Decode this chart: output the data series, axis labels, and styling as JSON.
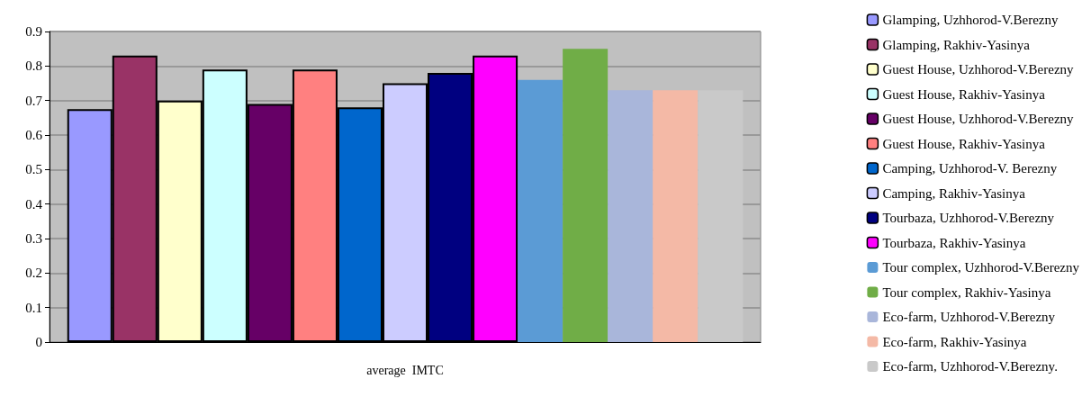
{
  "chart_data": {
    "type": "bar",
    "xlabel": "average  IMTC",
    "categories": [
      null
    ],
    "ylim": [
      0,
      0.9
    ],
    "yticks": [
      0,
      0.1,
      0.2,
      0.3,
      0.4,
      0.5,
      0.6,
      0.7,
      0.8,
      0.9
    ],
    "grid": "y",
    "legend": "right",
    "series": [
      {
        "name": "Glamping, Uzhhorod-V.Berezny",
        "color": "#9999ff",
        "values": [
          0.675
        ]
      },
      {
        "name": "Glamping, Rakhiv-Yasinya",
        "color": "#993366",
        "values": [
          0.83
        ]
      },
      {
        "name": "Guest House, Uzhhorod-V.Berezny",
        "color": "#ffffcc",
        "values": [
          0.7
        ]
      },
      {
        "name": "Guest House, Rakhiv-Yasinya",
        "color": "#ccffff",
        "values": [
          0.79
        ]
      },
      {
        "name": "Guest House, Uzhhorod-V.Berezny",
        "color": "#660066",
        "values": [
          0.69
        ]
      },
      {
        "name": "Guest House, Rakhiv-Yasinya",
        "color": "#ff8080",
        "values": [
          0.79
        ]
      },
      {
        "name": "Camping, Uzhhorod-V. Berezny",
        "color": "#0066cc",
        "values": [
          0.68
        ]
      },
      {
        "name": "Camping, Rakhiv-Yasinya",
        "color": "#ccccff",
        "values": [
          0.75
        ]
      },
      {
        "name": "Tourbaza, Uzhhorod-V.Berezny",
        "color": "#000080",
        "values": [
          0.78
        ]
      },
      {
        "name": "Tourbaza, Rakhiv-Yasinya",
        "color": "#ff00ff",
        "values": [
          0.83
        ]
      },
      {
        "name": "Tour complex, Uzhhorod-V.Berezny",
        "color": "#5b9bd5",
        "values": [
          0.76
        ]
      },
      {
        "name": "Tour complex, Rakhiv-Yasinya",
        "color": "#70ad47",
        "values": [
          0.85
        ]
      },
      {
        "name": "Eco-farm, Uzhhorod-V.Berezny",
        "color": "#a9b6da",
        "values": [
          0.73
        ]
      },
      {
        "name": "Eco-farm, Rakhiv-Yasinya",
        "color": "#f4b9a6",
        "values": [
          0.73
        ]
      },
      {
        "name": "Eco-farm, Uzhhorod-V.Berezny.",
        "color": "#c9c9c9",
        "values": [
          0.73
        ]
      }
    ]
  }
}
